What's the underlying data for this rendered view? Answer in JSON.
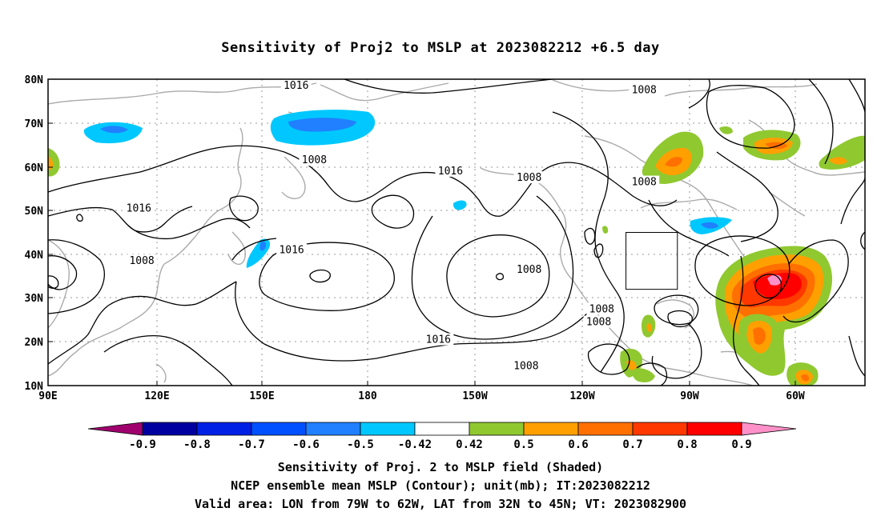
{
  "title": "Sensitivity of Proj2 to MSLP at 2023082212 +6.5 day",
  "lat_labels": [
    "80N",
    "70N",
    "60N",
    "50N",
    "40N",
    "30N",
    "20N",
    "10N"
  ],
  "lon_labels": [
    "90E",
    "120E",
    "150E",
    "180",
    "150W",
    "120W",
    "90W",
    "60W"
  ],
  "contour_labels": [
    {
      "value": "1016",
      "lon": 172,
      "lat": 78.5
    },
    {
      "value": "1008",
      "lon": -73,
      "lat": 77.5
    },
    {
      "value": "1008",
      "lon": 178,
      "lat": 61.5
    },
    {
      "value": "1016",
      "lon": -137,
      "lat": 59
    },
    {
      "value": "1008",
      "lon": -111,
      "lat": 57.5
    },
    {
      "value": "1008",
      "lon": -73,
      "lat": 56.5
    },
    {
      "value": "1016",
      "lon": 120,
      "lat": 50.5
    },
    {
      "value": "1016",
      "lon": 170.5,
      "lat": 41
    },
    {
      "value": "1008",
      "lon": 121,
      "lat": 38.5
    },
    {
      "value": "1008",
      "lon": -111,
      "lat": 36.5
    },
    {
      "value": "1008",
      "lon": -87,
      "lat": 27.5
    },
    {
      "value": "1008",
      "lon": -88,
      "lat": 24.5
    },
    {
      "value": "1016",
      "lon": -141,
      "lat": 20.5
    },
    {
      "value": "1008",
      "lon": -112,
      "lat": 14.5
    }
  ],
  "colorbar": {
    "colors": [
      "#a0006e",
      "#0000a0",
      "#0020e6",
      "#0050ff",
      "#2080ff",
      "#00c8ff",
      "#ffffff",
      "#90c830",
      "#ffa000",
      "#ff7000",
      "#ff3800",
      "#ff0000",
      "#ff90c8"
    ],
    "labels": [
      "-0.9",
      "-0.8",
      "-0.7",
      "-0.6",
      "-0.5",
      "-0.42",
      "0.42",
      "0.5",
      "0.6",
      "0.7",
      "0.8",
      "0.9"
    ]
  },
  "valid_box": {
    "lon_min": -79,
    "lon_max": -62,
    "lat_min": 32,
    "lat_max": 45
  },
  "footer": {
    "line1": "Sensitivity of Proj. 2 to MSLP field (Shaded)",
    "line2": "NCEP ensemble mean MSLP (Contour); unit(mb); IT:2023082212",
    "line3": "Valid area: LON from 79W to 62W, LAT from 32N to 45N; VT: 2023082900"
  }
}
